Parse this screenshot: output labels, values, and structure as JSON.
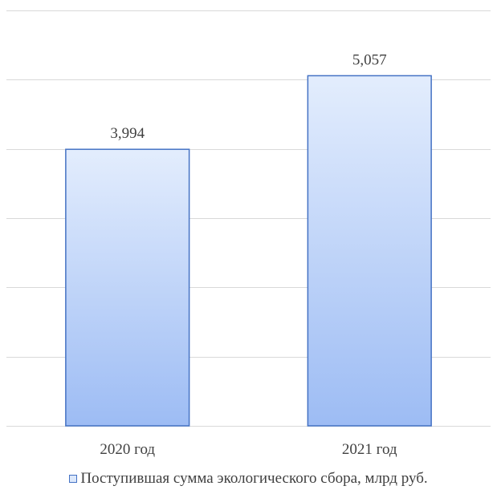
{
  "chart_data": {
    "type": "bar",
    "title": "",
    "xlabel": "",
    "ylabel": "",
    "categories": [
      "2020 год",
      "2021 год"
    ],
    "series": [
      {
        "name": "Поступившая сумма экологического сбора, млрд руб.",
        "values": [
          3.994,
          5.057
        ],
        "data_labels": [
          "3,994",
          "5,057"
        ]
      }
    ],
    "ylim": [
      0,
      6
    ],
    "y_gridline_step": 1,
    "y_tick_labels_visible": false,
    "grid": true,
    "legend_position": "bottom"
  },
  "colors": {
    "bar_fill_top": "#E3EDFD",
    "bar_fill_bottom": "#9DBCF4",
    "bar_border": "#4472C4",
    "gridline": "#D9D9D9",
    "text": "#404040"
  }
}
